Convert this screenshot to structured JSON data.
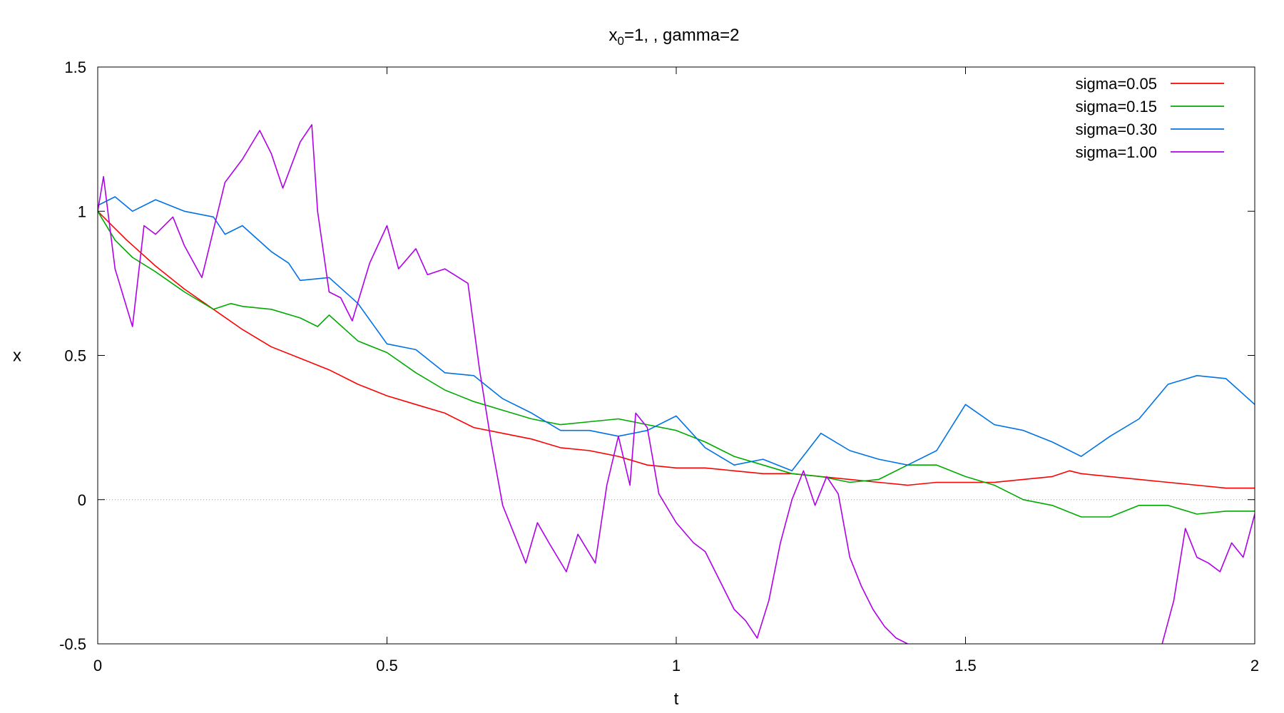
{
  "chart_data": {
    "type": "line",
    "title": {
      "prefix": "x",
      "subscript": "0",
      "suffix": "=1, , gamma=2"
    },
    "xlabel": "t",
    "ylabel": "x",
    "xlim": [
      0,
      2
    ],
    "ylim": [
      -0.5,
      1.5
    ],
    "xticks": [
      {
        "value": 0,
        "label": "0"
      },
      {
        "value": 0.5,
        "label": "0.5"
      },
      {
        "value": 1,
        "label": "1"
      },
      {
        "value": 1.5,
        "label": "1.5"
      },
      {
        "value": 2,
        "label": "2"
      }
    ],
    "yticks": [
      {
        "value": -0.5,
        "label": "-0.5"
      },
      {
        "value": 0,
        "label": "0"
      },
      {
        "value": 0.5,
        "label": "0.5"
      },
      {
        "value": 1,
        "label": "1"
      },
      {
        "value": 1.5,
        "label": "1.5"
      }
    ],
    "zero_line": true,
    "grid": false,
    "legend_position": "top-right",
    "series": [
      {
        "name": "sigma=0.05",
        "color": "#ff0000",
        "x": [
          0,
          0.05,
          0.1,
          0.15,
          0.2,
          0.25,
          0.3,
          0.35,
          0.4,
          0.45,
          0.5,
          0.55,
          0.6,
          0.65,
          0.7,
          0.75,
          0.8,
          0.85,
          0.9,
          0.95,
          1.0,
          1.05,
          1.1,
          1.15,
          1.2,
          1.25,
          1.3,
          1.35,
          1.4,
          1.45,
          1.5,
          1.55,
          1.6,
          1.65,
          1.68,
          1.7,
          1.75,
          1.8,
          1.85,
          1.9,
          1.95,
          2.0
        ],
        "y": [
          1.0,
          0.9,
          0.81,
          0.73,
          0.66,
          0.59,
          0.53,
          0.49,
          0.45,
          0.4,
          0.36,
          0.33,
          0.3,
          0.25,
          0.23,
          0.21,
          0.18,
          0.17,
          0.15,
          0.12,
          0.11,
          0.11,
          0.1,
          0.09,
          0.09,
          0.08,
          0.07,
          0.06,
          0.05,
          0.06,
          0.06,
          0.06,
          0.07,
          0.08,
          0.1,
          0.09,
          0.08,
          0.07,
          0.06,
          0.05,
          0.04,
          0.04
        ]
      },
      {
        "name": "sigma=0.15",
        "color": "#00aa00",
        "x": [
          0,
          0.03,
          0.06,
          0.1,
          0.15,
          0.2,
          0.23,
          0.25,
          0.3,
          0.35,
          0.38,
          0.4,
          0.45,
          0.5,
          0.55,
          0.6,
          0.65,
          0.7,
          0.75,
          0.8,
          0.85,
          0.9,
          0.95,
          1.0,
          1.05,
          1.1,
          1.15,
          1.2,
          1.25,
          1.3,
          1.35,
          1.4,
          1.45,
          1.5,
          1.55,
          1.6,
          1.65,
          1.7,
          1.75,
          1.8,
          1.85,
          1.9,
          1.95,
          2.0
        ],
        "y": [
          1.0,
          0.9,
          0.84,
          0.79,
          0.72,
          0.66,
          0.68,
          0.67,
          0.66,
          0.63,
          0.6,
          0.64,
          0.55,
          0.51,
          0.44,
          0.38,
          0.34,
          0.31,
          0.28,
          0.26,
          0.27,
          0.28,
          0.26,
          0.24,
          0.2,
          0.15,
          0.12,
          0.09,
          0.08,
          0.06,
          0.07,
          0.12,
          0.12,
          0.08,
          0.05,
          0.0,
          -0.02,
          -0.06,
          -0.06,
          -0.02,
          -0.02,
          -0.05,
          -0.04,
          -0.04
        ]
      },
      {
        "name": "sigma=0.30",
        "color": "#0072e6",
        "x": [
          0,
          0.03,
          0.06,
          0.1,
          0.15,
          0.2,
          0.22,
          0.25,
          0.3,
          0.33,
          0.35,
          0.4,
          0.45,
          0.5,
          0.55,
          0.6,
          0.65,
          0.7,
          0.75,
          0.8,
          0.85,
          0.9,
          0.95,
          1.0,
          1.05,
          1.1,
          1.15,
          1.2,
          1.25,
          1.3,
          1.35,
          1.4,
          1.45,
          1.5,
          1.55,
          1.6,
          1.65,
          1.7,
          1.75,
          1.8,
          1.85,
          1.9,
          1.95,
          2.0
        ],
        "y": [
          1.02,
          1.05,
          1.0,
          1.04,
          1.0,
          0.98,
          0.92,
          0.95,
          0.86,
          0.82,
          0.76,
          0.77,
          0.68,
          0.54,
          0.52,
          0.44,
          0.43,
          0.35,
          0.3,
          0.24,
          0.24,
          0.22,
          0.24,
          0.29,
          0.18,
          0.12,
          0.14,
          0.1,
          0.23,
          0.17,
          0.14,
          0.12,
          0.17,
          0.33,
          0.26,
          0.24,
          0.2,
          0.15,
          0.22,
          0.28,
          0.4,
          0.43,
          0.42,
          0.33
        ]
      },
      {
        "name": "sigma=1.00",
        "color": "#b000e8",
        "x": [
          0,
          0.01,
          0.03,
          0.06,
          0.08,
          0.1,
          0.13,
          0.15,
          0.18,
          0.22,
          0.25,
          0.28,
          0.3,
          0.32,
          0.35,
          0.37,
          0.38,
          0.4,
          0.42,
          0.44,
          0.47,
          0.5,
          0.52,
          0.55,
          0.57,
          0.6,
          0.64,
          0.66,
          0.68,
          0.7,
          0.72,
          0.74,
          0.76,
          0.78,
          0.81,
          0.83,
          0.86,
          0.88,
          0.9,
          0.92,
          0.93,
          0.95,
          0.97,
          1.0,
          1.03,
          1.05,
          1.08,
          1.1,
          1.12,
          1.14,
          1.16,
          1.18,
          1.2,
          1.22,
          1.24,
          1.26,
          1.28,
          1.3,
          1.32,
          1.34,
          1.36,
          1.38,
          1.4
        ],
        "y": [
          1.0,
          1.12,
          0.8,
          0.6,
          0.95,
          0.92,
          0.98,
          0.88,
          0.77,
          1.1,
          1.18,
          1.28,
          1.2,
          1.08,
          1.24,
          1.3,
          1.0,
          0.72,
          0.7,
          0.62,
          0.82,
          0.95,
          0.8,
          0.87,
          0.78,
          0.8,
          0.75,
          0.45,
          0.2,
          -0.02,
          -0.12,
          -0.22,
          -0.08,
          -0.15,
          -0.25,
          -0.12,
          -0.22,
          0.05,
          0.22,
          0.05,
          0.3,
          0.25,
          0.02,
          -0.08,
          -0.15,
          -0.18,
          -0.3,
          -0.38,
          -0.42,
          -0.48,
          -0.35,
          -0.15,
          0.0,
          0.1,
          -0.02,
          0.08,
          0.02,
          -0.2,
          -0.3,
          -0.38,
          -0.44,
          -0.48,
          -0.5
        ]
      },
      {
        "name": "",
        "color": "#b000e8",
        "x": [
          1.84,
          1.86,
          1.88,
          1.9,
          1.92,
          1.94,
          1.96,
          1.98,
          2.0
        ],
        "y": [
          -0.5,
          -0.35,
          -0.1,
          -0.2,
          -0.22,
          -0.25,
          -0.15,
          -0.2,
          -0.05
        ]
      }
    ]
  }
}
